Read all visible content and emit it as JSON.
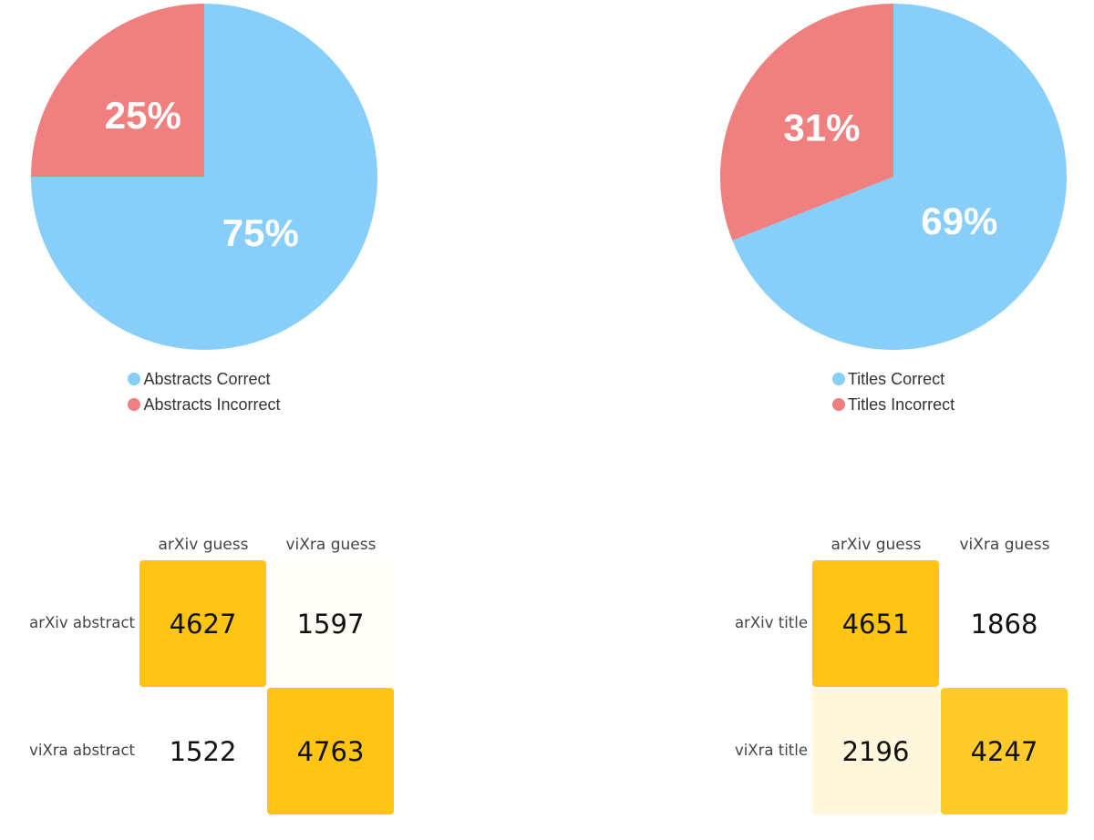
{
  "colors": {
    "correct": "#87cefa",
    "incorrect": "#f08080"
  },
  "chart_data": [
    {
      "type": "pie",
      "labels": [
        "Abstracts Correct",
        "Abstracts Incorrect"
      ],
      "values": [
        75,
        25
      ],
      "data_labels": [
        "75%",
        "25%"
      ],
      "colors": [
        "#87cefa",
        "#f08080"
      ],
      "legend": "bottom"
    },
    {
      "type": "pie",
      "labels": [
        "Titles Correct",
        "Titles Incorrect"
      ],
      "values": [
        69,
        31
      ],
      "data_labels": [
        "69%",
        "31%"
      ],
      "colors": [
        "#87cefa",
        "#f08080"
      ],
      "legend": "bottom"
    },
    {
      "type": "heatmap",
      "columns": [
        "arXiv guess",
        "viXra guess"
      ],
      "rows": [
        "arXiv abstract",
        "viXra abstract"
      ],
      "values": [
        [
          4627,
          1597
        ],
        [
          1522,
          4763
        ]
      ],
      "cell_colors": [
        [
          "#ffc414",
          "#fffdf6"
        ],
        [
          "#ffffff",
          "#ffc414"
        ]
      ]
    },
    {
      "type": "heatmap",
      "columns": [
        "arXiv guess",
        "viXra guess"
      ],
      "rows": [
        "arXiv title",
        "viXra title"
      ],
      "values": [
        [
          4651,
          1868
        ],
        [
          2196,
          4247
        ]
      ],
      "cell_colors": [
        [
          "#ffc414",
          "#ffffff"
        ],
        [
          "#fff6db",
          "#ffcb2a"
        ]
      ]
    }
  ]
}
